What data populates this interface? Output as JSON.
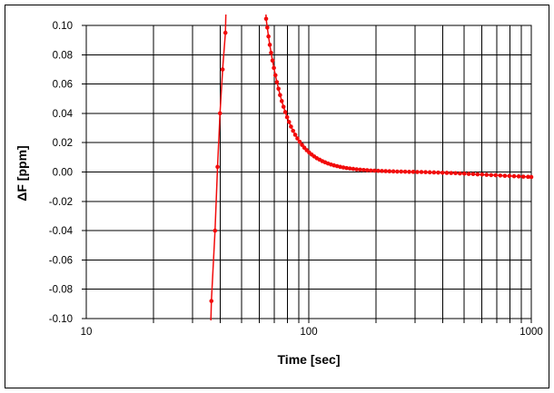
{
  "frame": {
    "background": "#ffffff",
    "border_color": "#000000"
  },
  "chart_data": {
    "type": "line",
    "title": "",
    "xlabel": "Time [sec]",
    "ylabel": "ΔF [ppm]",
    "legend": {
      "show": false
    },
    "grid": {
      "show": true,
      "color": "#000000",
      "log_minor_verticals": true
    },
    "x_axis": {
      "scale": "log",
      "min": 10,
      "max": 1000,
      "ticks": [
        10,
        100,
        1000
      ],
      "tick_labels": [
        "10",
        "100",
        "1000"
      ]
    },
    "y_axis": {
      "min": -0.1,
      "max": 0.1,
      "step": 0.02,
      "tick_labels": [
        "0.10",
        "0.08",
        "0.06",
        "0.04",
        "0.02",
        "0.00",
        "-0.02",
        "-0.04",
        "-0.06",
        "-0.08",
        "-0.10"
      ]
    },
    "series": [
      {
        "name": "ΔF",
        "color": "#f20b0b",
        "marker": "circle",
        "description": "Sharp spike rising through the full axis range near t≈36–43 s (from below −0.10 to above +0.10), then re-entering from above +0.10 at t≈64 s and decaying to ~0 by t≈250 s, drifting slightly negative to ≈ −0.004 ppm at t = 1000 s.",
        "points": [
          [
            35.9,
            -0.13
          ],
          [
            36.5,
            -0.088
          ],
          [
            37.9,
            -0.04
          ],
          [
            38.9,
            0.0035
          ],
          [
            39.9,
            0.04
          ],
          [
            41,
            0.07
          ],
          [
            42.2,
            0.095
          ],
          [
            42.9,
            0.14
          ],
          [
            63.6,
            0.13
          ],
          [
            64.3,
            0.1045
          ],
          [
            65.1,
            0.0985
          ],
          [
            65.9,
            0.0925
          ],
          [
            66.8,
            0.0868
          ],
          [
            67.7,
            0.0813
          ],
          [
            68.7,
            0.076
          ],
          [
            69.7,
            0.071
          ],
          [
            70.8,
            0.066
          ],
          [
            71.9,
            0.0613
          ],
          [
            73.1,
            0.0568
          ],
          [
            74.3,
            0.0525
          ],
          [
            75.6,
            0.0484
          ],
          [
            77,
            0.0445
          ],
          [
            78.4,
            0.0409
          ],
          [
            79.9,
            0.0374
          ],
          [
            81.5,
            0.0341
          ],
          [
            83.2,
            0.031
          ],
          [
            85,
            0.0281
          ],
          [
            86.9,
            0.0254
          ],
          [
            88.9,
            0.0229
          ],
          [
            91,
            0.0206
          ],
          [
            93.2,
            0.0185
          ],
          [
            95.5,
            0.0166
          ],
          [
            97.9,
            0.0149
          ],
          [
            100.4,
            0.0133
          ],
          [
            103,
            0.0119
          ],
          [
            105.8,
            0.0106
          ],
          [
            108.7,
            0.0094
          ],
          [
            111.8,
            0.0084
          ],
          [
            115,
            0.0074
          ],
          [
            118.4,
            0.0066
          ],
          [
            122,
            0.0058
          ],
          [
            125.8,
            0.0051
          ],
          [
            129.8,
            0.0045
          ],
          [
            134,
            0.004
          ],
          [
            138.4,
            0.0035
          ],
          [
            143,
            0.0031
          ],
          [
            147.9,
            0.0027
          ],
          [
            153,
            0.0024
          ],
          [
            158.4,
            0.0021
          ],
          [
            164.1,
            0.0018
          ],
          [
            170.1,
            0.0016
          ],
          [
            176.4,
            0.0014
          ],
          [
            183,
            0.0012
          ],
          [
            190,
            0.001
          ],
          [
            197.3,
            0.0009
          ],
          [
            205,
            0.0008
          ],
          [
            213.1,
            0.0007
          ],
          [
            221.6,
            0.0006
          ],
          [
            230.5,
            0.0005
          ],
          [
            239.9,
            0.0004
          ],
          [
            249.8,
            0.0003
          ],
          [
            260.2,
            0.0003
          ],
          [
            271.1,
            0.0002
          ],
          [
            282.6,
            0.0001
          ],
          [
            294.7,
            0.0001
          ],
          [
            307.4,
            0
          ],
          [
            320.8,
            0
          ],
          [
            334.9,
            -0.0001
          ],
          [
            349.7,
            -0.0002
          ],
          [
            365.3,
            -0.0003
          ],
          [
            381.7,
            -0.0004
          ],
          [
            399,
            -0.0005
          ],
          [
            417.2,
            -0.0006
          ],
          [
            436.3,
            -0.0007
          ],
          [
            456.4,
            -0.0008
          ],
          [
            477.6,
            -0.001
          ],
          [
            499.9,
            -0.0011
          ],
          [
            523.3,
            -0.0013
          ],
          [
            547.9,
            -0.0014
          ],
          [
            573.8,
            -0.0016
          ],
          [
            601.1,
            -0.0017
          ],
          [
            629.8,
            -0.0019
          ],
          [
            660,
            -0.0021
          ],
          [
            691.8,
            -0.0022
          ],
          [
            725.3,
            -0.0024
          ],
          [
            760.6,
            -0.0026
          ],
          [
            797.7,
            -0.0027
          ],
          [
            836.8,
            -0.0029
          ],
          [
            878,
            -0.003
          ],
          [
            921.4,
            -0.0032
          ],
          [
            967.2,
            -0.0033
          ],
          [
            1000,
            -0.0034
          ]
        ]
      }
    ]
  }
}
